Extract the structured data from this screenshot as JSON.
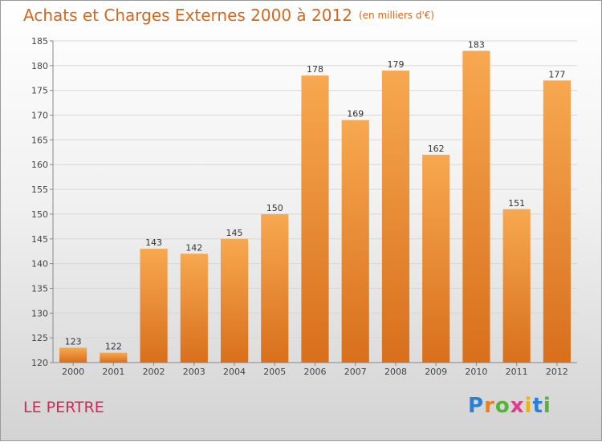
{
  "header": {
    "title": "Achats et Charges Externes 2000 à 2012",
    "unit": "(en milliers d'€)"
  },
  "footer": {
    "place": "LE PERTRE",
    "logo_text": "Proxiti"
  },
  "colors": {
    "bar_top": "#f7a850",
    "bar_bottom": "#d86f1c",
    "title": "#d2691e",
    "place": "#cc2a5a"
  },
  "chart_data": {
    "type": "bar",
    "categories": [
      "2000",
      "2001",
      "2002",
      "2003",
      "2004",
      "2005",
      "2006",
      "2007",
      "2008",
      "2009",
      "2010",
      "2011",
      "2012"
    ],
    "values": [
      123,
      122,
      143,
      142,
      145,
      150,
      178,
      169,
      179,
      162,
      183,
      151,
      177
    ],
    "title": "Achats et Charges Externes 2000 à 2012",
    "subtitle": "(en milliers d'€)",
    "ylim": [
      120,
      185
    ],
    "yticks": [
      120,
      125,
      130,
      135,
      140,
      145,
      150,
      155,
      160,
      165,
      170,
      175,
      180,
      185
    ],
    "grid": true,
    "data_labels": true
  }
}
